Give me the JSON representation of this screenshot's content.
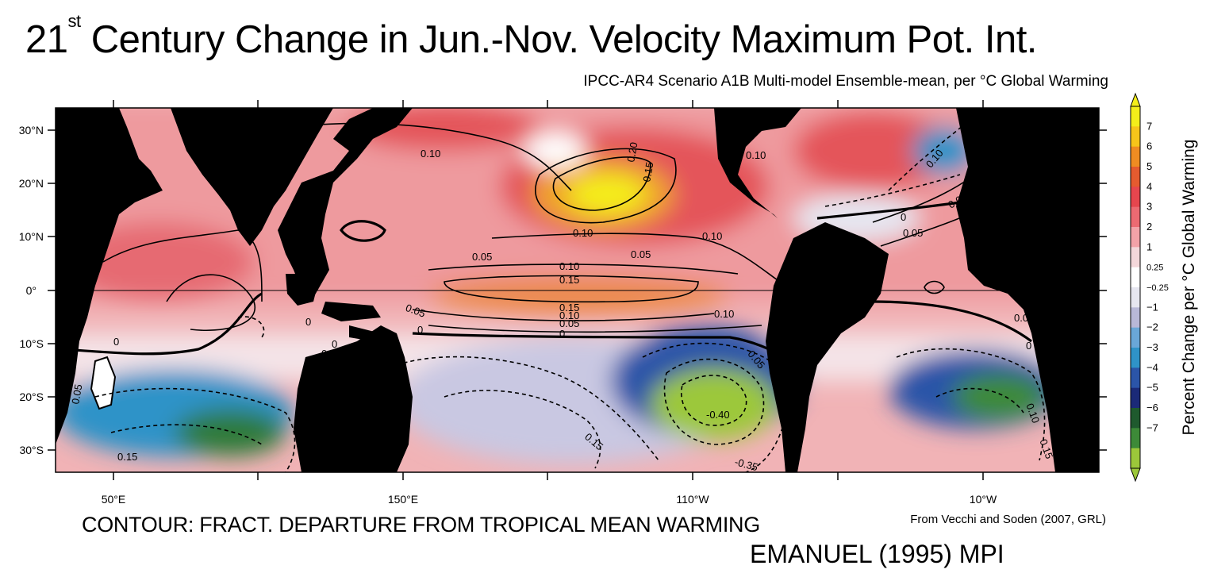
{
  "title": {
    "prefix": "21",
    "superscript": "st",
    "rest": " Century Change in Jun.-Nov. Velocity Maximum Pot. Int."
  },
  "subtitle": "IPCC-AR4 Scenario A1B Multi-model Ensemble-mean, per °C Global Warming",
  "map": {
    "lat_labels": [
      "30°N",
      "20°N",
      "10°N",
      "0°",
      "10°S",
      "20°S",
      "30°S"
    ],
    "lon_labels": [
      "50°E",
      "150°E",
      "110°W",
      "10°W"
    ],
    "contour_labels": [
      "0.10",
      "0.20",
      "0.15",
      "0.10",
      "0.10",
      "0.05",
      "0.05",
      "0.10",
      "0.15",
      "0.15",
      "0.10",
      "0.05",
      "0",
      "0.05",
      "0.10",
      "0.05",
      "0",
      "0",
      "0.10",
      "0",
      "0.05",
      "0",
      "0.05",
      "0.05",
      "-0.40",
      "0.15",
      "-0.35",
      "0.15",
      "0.10",
      "0.15",
      "0",
      "0.05",
      "0",
      "0",
      "0.10"
    ]
  },
  "colorbar": {
    "ticks": [
      "7",
      "6",
      "5",
      "4",
      "3",
      "2",
      "1",
      "0.25",
      "−0.25",
      "−1",
      "−2",
      "−3",
      "−4",
      "−5",
      "−6",
      "−7"
    ],
    "label": "Percent Change per °C Global Warming",
    "colors": [
      "#f4ee1a",
      "#f7c51a",
      "#ef8c22",
      "#e55b2f",
      "#e6464e",
      "#ec6a72",
      "#f3a2a8",
      "#f4d7da",
      "#ffffff",
      "#e6e6f0",
      "#b8b8d8",
      "#6aa7d8",
      "#2f93c8",
      "#2b55a8",
      "#1b2a78",
      "#1f5a2e",
      "#3d8a38",
      "#9cc83a"
    ]
  },
  "footer": {
    "contour_note": "CONTOUR: FRACT. DEPARTURE FROM TROPICAL MEAN WARMING",
    "credit": "From Vecchi and Soden (2007, GRL)",
    "model": "EMANUEL (1995) MPI"
  }
}
